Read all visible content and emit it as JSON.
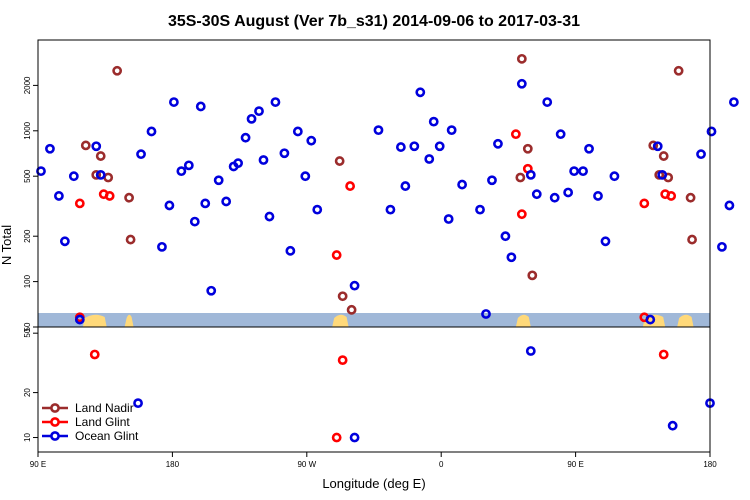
{
  "chart_data": {
    "type": "scatter",
    "title": "35S-30S August (Ver 7b_s31)   2014-09-06 to 2017-03-31",
    "xlabel": "Longitude (deg E)",
    "ylabel": "N Total",
    "x_ticks": [
      {
        "value": 90,
        "label": "90 E"
      },
      {
        "value": 180,
        "label": "180"
      },
      {
        "value": 270,
        "label": "90 W"
      },
      {
        "value": 360,
        "label": "0"
      },
      {
        "value": 450,
        "label": "90 E"
      },
      {
        "value": 540,
        "label": "180"
      }
    ],
    "xlim": [
      90,
      540
    ],
    "log_scale": true,
    "upper_panel": {
      "ylim": [
        50,
        4000
      ],
      "y_ticks": [
        {
          "value": 50,
          "label": "50"
        },
        {
          "value": 100,
          "label": "100"
        },
        {
          "value": 200,
          "label": "200"
        },
        {
          "value": 500,
          "label": "500"
        },
        {
          "value": 1000,
          "label": "1000"
        },
        {
          "value": 2000,
          "label": "2000"
        }
      ]
    },
    "lower_panel": {
      "ylim": [
        8,
        55
      ],
      "y_ticks": [
        {
          "value": 10,
          "label": "10"
        },
        {
          "value": 20,
          "label": "20"
        },
        {
          "value": 50,
          "label": "50"
        }
      ]
    },
    "legend": {
      "placement": "bottom-left",
      "entries": [
        {
          "label": "Land Nadir",
          "color": "#9b2c2c"
        },
        {
          "label": "Land Glint",
          "color": "#ff0000"
        },
        {
          "label": "Ocean Glint",
          "color": "#0000dd"
        }
      ]
    },
    "series": [
      {
        "name": "Land Nadir",
        "color": "#9b2c2c",
        "points": [
          [
            122,
            800
          ],
          [
            129,
            510
          ],
          [
            132,
            680
          ],
          [
            137,
            490
          ],
          [
            143,
            2500
          ],
          [
            151,
            360
          ],
          [
            152,
            190
          ],
          [
            292,
            630
          ],
          [
            294,
            80
          ],
          [
            300,
            65
          ],
          [
            413,
            490
          ],
          [
            414,
            3000
          ],
          [
            418,
            760
          ],
          [
            421,
            110
          ],
          [
            502,
            800
          ],
          [
            506,
            510
          ],
          [
            509,
            680
          ],
          [
            512,
            490
          ],
          [
            519,
            2500
          ],
          [
            527,
            360
          ],
          [
            528,
            190
          ]
        ]
      },
      {
        "name": "Land Glint",
        "color": "#ff0000",
        "points": [
          [
            118,
            330
          ],
          [
            118,
            58
          ],
          [
            134,
            380
          ],
          [
            138,
            370
          ],
          [
            290,
            150
          ],
          [
            299,
            430
          ],
          [
            410,
            950
          ],
          [
            414,
            280
          ],
          [
            418,
            560
          ],
          [
            496,
            330
          ],
          [
            496,
            58
          ],
          [
            510,
            380
          ],
          [
            514,
            370
          ]
        ]
      },
      {
        "name": "Ocean Glint",
        "color": "#0000dd",
        "points": [
          [
            92,
            540
          ],
          [
            98,
            760
          ],
          [
            104,
            370
          ],
          [
            108,
            185
          ],
          [
            114,
            500
          ],
          [
            118,
            56
          ],
          [
            129,
            790
          ],
          [
            132,
            510
          ],
          [
            159,
            700
          ],
          [
            166,
            990
          ],
          [
            173,
            170
          ],
          [
            178,
            320
          ],
          [
            181,
            1550
          ],
          [
            186,
            540
          ],
          [
            191,
            590
          ],
          [
            195,
            250
          ],
          [
            199,
            1450
          ],
          [
            202,
            330
          ],
          [
            206,
            87
          ],
          [
            211,
            470
          ],
          [
            216,
            340
          ],
          [
            221,
            580
          ],
          [
            224,
            610
          ],
          [
            229,
            900
          ],
          [
            233,
            1200
          ],
          [
            238,
            1350
          ],
          [
            241,
            640
          ],
          [
            245,
            270
          ],
          [
            249,
            1550
          ],
          [
            255,
            710
          ],
          [
            259,
            160
          ],
          [
            264,
            990
          ],
          [
            269,
            500
          ],
          [
            273,
            860
          ],
          [
            277,
            300
          ],
          [
            302,
            94
          ],
          [
            318,
            1010
          ],
          [
            326,
            300
          ],
          [
            333,
            780
          ],
          [
            336,
            430
          ],
          [
            342,
            790
          ],
          [
            346,
            1800
          ],
          [
            352,
            650
          ],
          [
            355,
            1150
          ],
          [
            359,
            790
          ],
          [
            365,
            260
          ],
          [
            367,
            1010
          ],
          [
            374,
            440
          ],
          [
            386,
            300
          ],
          [
            390,
            61
          ],
          [
            394,
            470
          ],
          [
            398,
            820
          ],
          [
            403,
            200
          ],
          [
            407,
            145
          ],
          [
            414,
            2050
          ],
          [
            420,
            510
          ],
          [
            424,
            380
          ],
          [
            431,
            1550
          ],
          [
            436,
            360
          ],
          [
            440,
            950
          ],
          [
            445,
            390
          ],
          [
            449,
            540
          ],
          [
            455,
            540
          ],
          [
            459,
            760
          ],
          [
            465,
            370
          ],
          [
            470,
            185
          ],
          [
            476,
            500
          ],
          [
            500,
            56
          ],
          [
            505,
            790
          ],
          [
            508,
            510
          ],
          [
            534,
            700
          ],
          [
            541,
            990
          ],
          [
            548,
            170
          ],
          [
            553,
            320
          ],
          [
            556,
            1550
          ]
        ]
      }
    ],
    "lower_series": [
      {
        "name": "Land Glint",
        "color": "#ff0000",
        "points": [
          [
            128,
            36
          ],
          [
            290,
            10
          ],
          [
            294,
            33
          ],
          [
            509,
            36
          ]
        ]
      },
      {
        "name": "Ocean Glint",
        "color": "#0000dd",
        "points": [
          [
            157,
            17
          ],
          [
            302,
            10
          ],
          [
            420,
            38
          ],
          [
            515,
            12
          ],
          [
            540,
            17
          ]
        ]
      }
    ],
    "terrain_band_color": "#a0b8d8",
    "land_color": "#ffd97a"
  }
}
